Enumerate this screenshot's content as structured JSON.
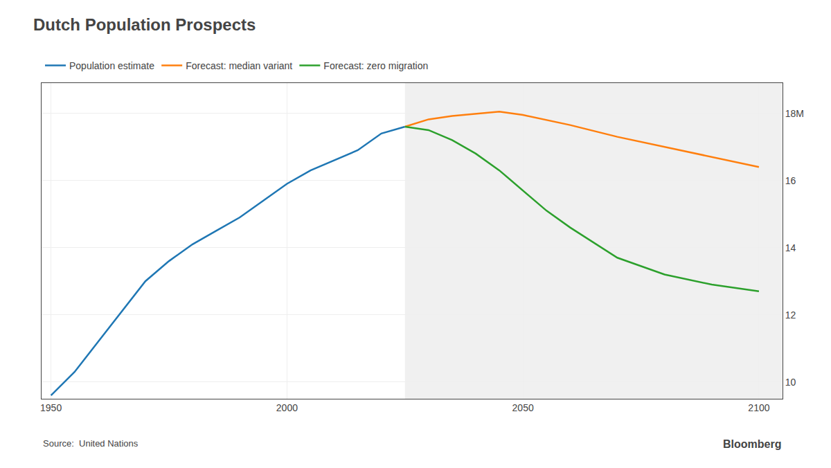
{
  "chart_data": {
    "type": "line",
    "title": "Dutch Population Prospects",
    "annotations": [
      "Source:  United Nations",
      "Bloomberg"
    ],
    "series": [
      {
        "name": "Population estimate",
        "x": [
          1950,
          1955,
          1960,
          1965,
          1970,
          1975,
          1980,
          1985,
          1990,
          1995,
          2000,
          2005,
          2010,
          2015,
          2020,
          2025
        ],
        "values": [
          9.6,
          10.3,
          11.2,
          12.1,
          13.0,
          13.6,
          14.1,
          14.5,
          14.9,
          15.4,
          15.9,
          16.3,
          16.6,
          16.9,
          17.4,
          17.6
        ]
      },
      {
        "name": "Forecast: median variant",
        "x": [
          2025,
          2030,
          2035,
          2040,
          2045,
          2050,
          2055,
          2060,
          2070,
          2080,
          2090,
          2100
        ],
        "values": [
          17.6,
          17.82,
          17.92,
          17.98,
          18.05,
          17.95,
          17.8,
          17.65,
          17.3,
          17.0,
          16.7,
          16.4
        ]
      },
      {
        "name": "Forecast: zero migration",
        "x": [
          2025,
          2030,
          2035,
          2040,
          2045,
          2050,
          2055,
          2060,
          2070,
          2080,
          2090,
          2100
        ],
        "values": [
          17.6,
          17.5,
          17.2,
          16.8,
          16.3,
          15.7,
          15.1,
          14.6,
          13.7,
          13.2,
          12.9,
          12.7
        ]
      }
    ],
    "xlim": [
      1948,
      2105
    ],
    "xticks": [
      1950,
      2000,
      2050,
      2100
    ],
    "ylim": [
      9.5,
      18.9
    ],
    "yticks": [
      10,
      12,
      14,
      16,
      {
        "value": 18,
        "label": "18M"
      }
    ],
    "grid": true
  }
}
